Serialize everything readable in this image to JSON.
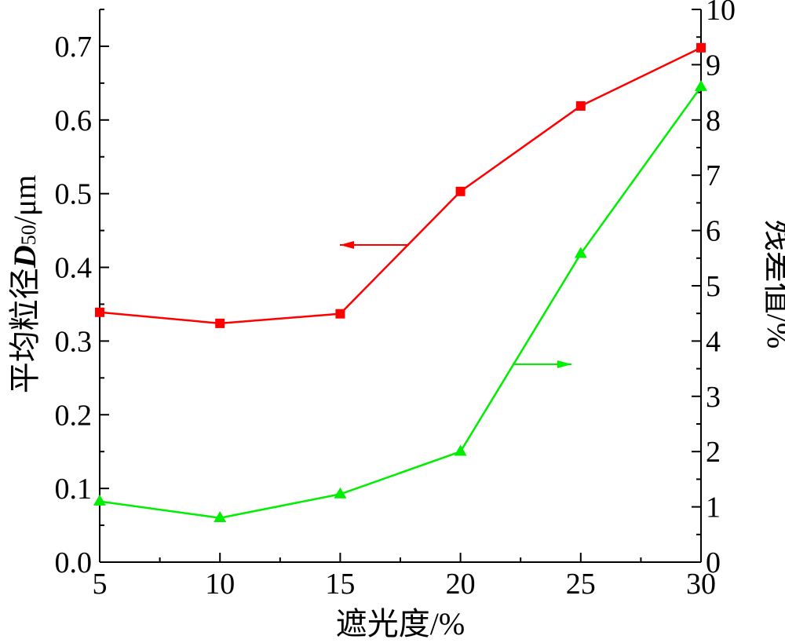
{
  "chart_data": {
    "type": "line",
    "xlabel": "遮光度/%",
    "ylabel_left": {
      "prefix": "平均粒径",
      "var": "D",
      "sub": "50",
      "suffix": "/μm"
    },
    "ylabel_right": "残差值/%",
    "x": [
      5,
      10,
      15,
      20,
      25,
      30
    ],
    "xlim": [
      5,
      30
    ],
    "xticks": [
      "5",
      "10",
      "15",
      "20",
      "25",
      "30"
    ],
    "ylim_left": [
      0.0,
      0.75
    ],
    "yticks_left": [
      "0.0",
      "0.1",
      "0.2",
      "0.3",
      "0.4",
      "0.5",
      "0.6",
      "0.7"
    ],
    "ylim_right": [
      0,
      10
    ],
    "yticks_right": [
      "0",
      "1",
      "2",
      "3",
      "4",
      "5",
      "6",
      "7",
      "8",
      "9",
      "10"
    ],
    "series": [
      {
        "axis": "left",
        "marker": "square",
        "color": "#ff0000",
        "values": [
          0.339,
          0.324,
          0.337,
          0.503,
          0.619,
          0.698
        ]
      },
      {
        "axis": "right",
        "marker": "triangle",
        "color": "#00ee00",
        "values": [
          1.1,
          0.8,
          1.23,
          2.0,
          5.58,
          8.6
        ]
      }
    ],
    "annotations": [
      {
        "type": "arrow",
        "direction": "left",
        "color": "#ff0000",
        "points_to": "left-axis"
      },
      {
        "type": "arrow",
        "direction": "right",
        "color": "#00ee00",
        "points_to": "right-axis"
      }
    ],
    "grid": false
  }
}
